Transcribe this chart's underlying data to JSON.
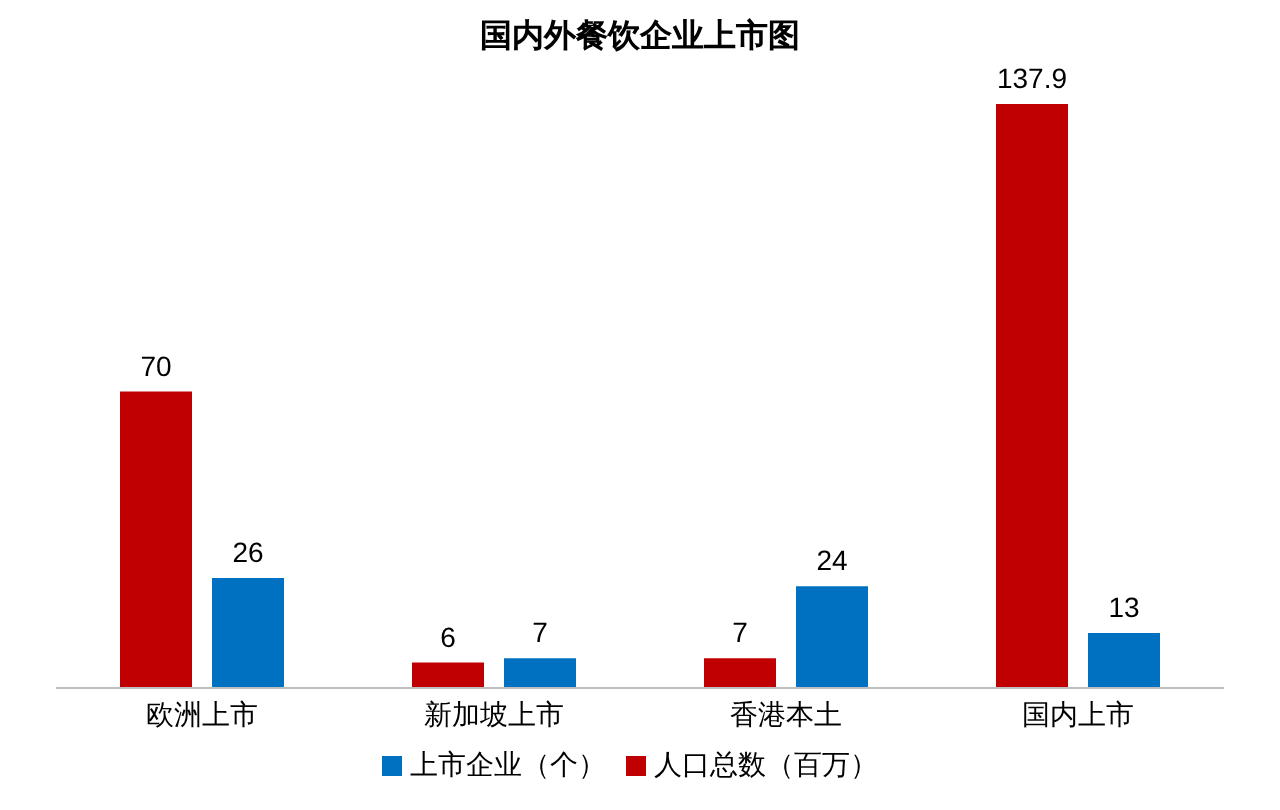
{
  "chart_data": {
    "type": "bar",
    "title": "国内外餐饮企业上市图",
    "categories": [
      "欧洲上市",
      "新加坡上市",
      "香港本土",
      "国内上市"
    ],
    "series": [
      {
        "name": "人口总数（百万）",
        "color": "#c00000",
        "values": [
          70,
          6,
          7,
          137.9
        ]
      },
      {
        "name": "上市企业（个）",
        "color": "#0070c0",
        "values": [
          26,
          7,
          24,
          13
        ]
      }
    ],
    "data_labels": true,
    "legend": "bottom",
    "grid": false
  }
}
